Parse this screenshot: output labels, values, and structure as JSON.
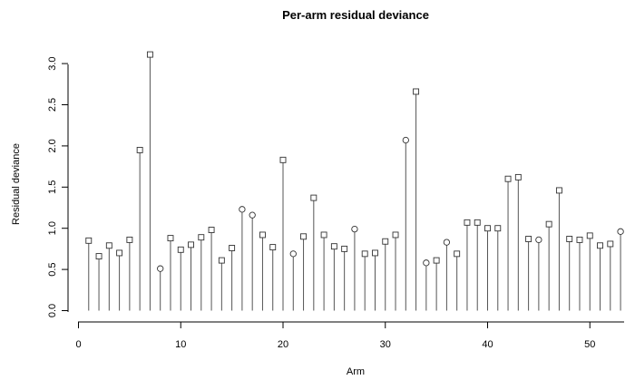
{
  "chart_data": {
    "type": "scatter",
    "style": "lollipop",
    "title": "Per-arm residual deviance",
    "xlabel": "Arm",
    "ylabel": "Residual deviance",
    "xlim": [
      0,
      54
    ],
    "ylim": [
      0,
      3.15
    ],
    "xticks": [
      0,
      10,
      20,
      30,
      40,
      50
    ],
    "xtick_labels": [
      "0",
      "10",
      "20",
      "30",
      "40",
      "50"
    ],
    "yticks": [
      0.0,
      0.5,
      1.0,
      1.5,
      2.0,
      2.5,
      3.0
    ],
    "ytick_labels": [
      "0.0",
      "0.5",
      "1.0",
      "1.5",
      "2.0",
      "2.5",
      "3.0"
    ],
    "grid": false,
    "series": [
      {
        "marker": "square",
        "x": [
          1,
          2,
          3,
          4,
          5,
          6,
          7,
          9,
          10,
          11,
          12,
          13,
          14,
          15,
          18,
          19,
          20,
          22,
          23,
          24,
          25,
          26,
          28,
          29,
          30,
          31,
          33,
          35,
          37,
          38,
          39,
          40,
          41,
          42,
          43,
          44,
          46,
          47,
          48,
          49,
          50,
          51,
          52
        ],
        "values": [
          0.85,
          0.66,
          0.79,
          0.7,
          0.86,
          1.95,
          3.11,
          0.88,
          0.74,
          0.8,
          0.89,
          0.98,
          0.61,
          0.76,
          0.92,
          0.77,
          1.83,
          0.9,
          1.37,
          0.92,
          0.78,
          0.75,
          0.69,
          0.7,
          0.84,
          0.92,
          2.66,
          0.61,
          0.69,
          1.07,
          1.07,
          1.0,
          1.0,
          1.6,
          1.62,
          0.87,
          1.05,
          1.46,
          0.87,
          0.86,
          0.91,
          0.79,
          0.81
        ]
      },
      {
        "marker": "circle",
        "x": [
          8,
          16,
          17,
          21,
          27,
          32,
          34,
          36,
          45,
          53
        ],
        "values": [
          0.51,
          1.23,
          1.16,
          0.69,
          0.99,
          2.07,
          0.58,
          0.83,
          0.86,
          0.96
        ]
      }
    ]
  }
}
